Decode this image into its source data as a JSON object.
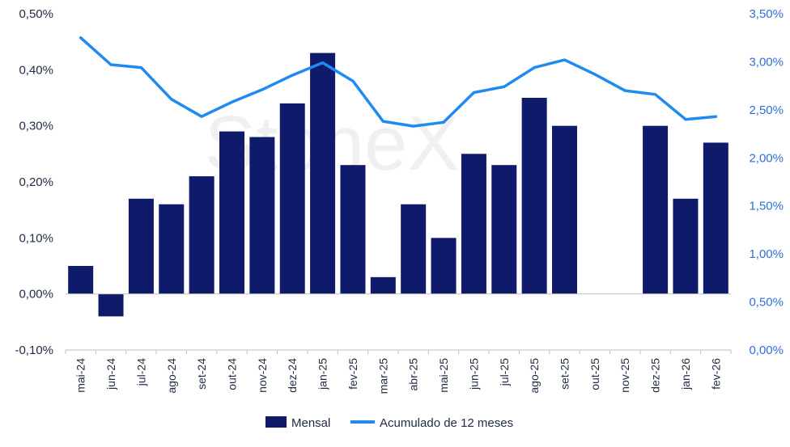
{
  "chart_data": {
    "type": "bar",
    "categories": [
      "mai-24",
      "jun-24",
      "jul-24",
      "ago-24",
      "set-24",
      "out-24",
      "nov-24",
      "dez-24",
      "jan-25",
      "fev-25",
      "mar-25",
      "abr-25",
      "mai-25",
      "jun-25",
      "jul-25",
      "ago-25",
      "set-25",
      "out-25",
      "nov-25",
      "dez-25",
      "jan-26",
      "fev-26"
    ],
    "series": [
      {
        "name": "Mensal",
        "type": "bar",
        "axis": "left",
        "color": "#101a6b",
        "values": [
          0.05,
          -0.04,
          0.17,
          0.16,
          0.21,
          0.29,
          0.28,
          0.34,
          0.43,
          0.23,
          0.03,
          0.16,
          0.1,
          0.25,
          0.23,
          0.35,
          0.3,
          null,
          null,
          0.3,
          0.17,
          0.27
        ]
      },
      {
        "name": "Acumulado de 12 meses",
        "type": "line",
        "axis": "right",
        "color": "#1f8bf0",
        "values": [
          3.25,
          2.97,
          2.94,
          2.61,
          2.43,
          2.58,
          2.71,
          2.86,
          2.99,
          2.8,
          2.38,
          2.33,
          2.37,
          2.68,
          2.74,
          2.94,
          3.02,
          2.87,
          2.7,
          2.66,
          2.4,
          2.43
        ]
      }
    ],
    "y_left": {
      "ylim": [
        -0.1,
        0.5
      ],
      "ticks": [
        "-0,10%",
        "0,00%",
        "0,10%",
        "0,20%",
        "0,30%",
        "0,40%",
        "0,50%"
      ]
    },
    "y_right": {
      "ylim": [
        0,
        3.5
      ],
      "ticks": [
        "0,00%",
        "0,50%",
        "1,00%",
        "1,50%",
        "2,00%",
        "2,50%",
        "3,00%",
        "3,50%"
      ]
    },
    "grid": false,
    "legend_position": "bottom-center",
    "watermark": "StoneX"
  }
}
